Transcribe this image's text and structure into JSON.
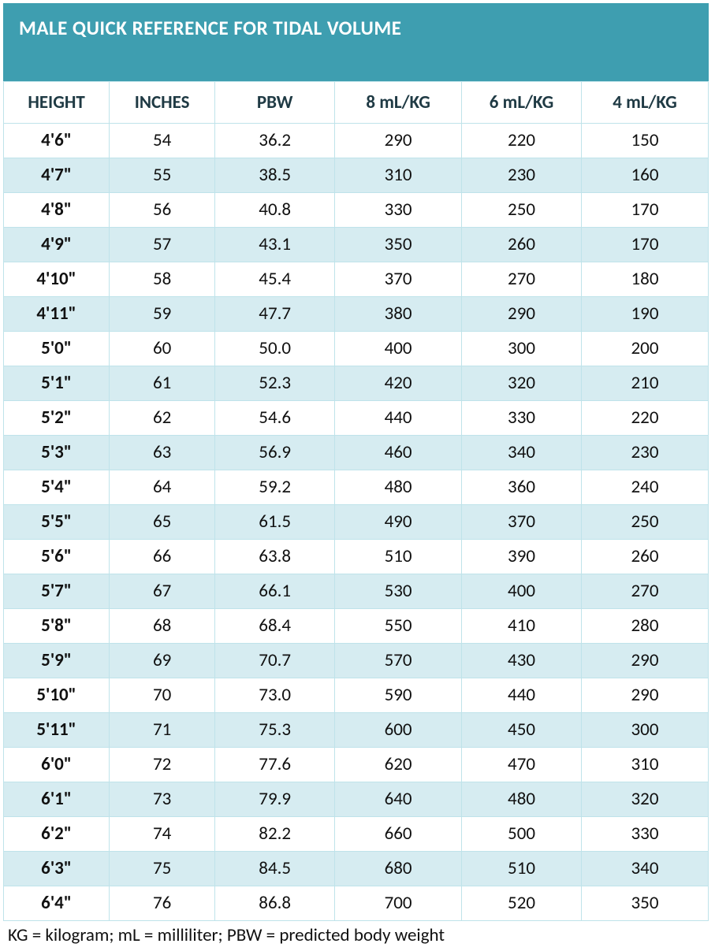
{
  "title": "MALE QUICK REFERENCE FOR TIDAL VOLUME",
  "footnote": "KG = kilogram; mL = milliliter; PBW = predicted body weight",
  "colors": {
    "title_bg": "#3e9eb0",
    "title_fg": "#ffffff",
    "header_fg": "#1f3a44",
    "cell_fg": "#111111",
    "row_alt": "#d6ecf1",
    "border": "#bfe3ea"
  },
  "table": {
    "type": "table",
    "columns": [
      "HEIGHT",
      "INCHES",
      "PBW",
      "8 mL/KG",
      "6 mL/KG",
      "4 mL/KG"
    ],
    "col_widths_pct": [
      15,
      15,
      17,
      18,
      17,
      18
    ],
    "rows": [
      [
        "4'6\"",
        "54",
        "36.2",
        "290",
        "220",
        "150"
      ],
      [
        "4'7\"",
        "55",
        "38.5",
        "310",
        "230",
        "160"
      ],
      [
        "4'8\"",
        "56",
        "40.8",
        "330",
        "250",
        "170"
      ],
      [
        "4'9\"",
        "57",
        "43.1",
        "350",
        "260",
        "170"
      ],
      [
        "4'10\"",
        "58",
        "45.4",
        "370",
        "270",
        "180"
      ],
      [
        "4'11\"",
        "59",
        "47.7",
        "380",
        "290",
        "190"
      ],
      [
        "5'0\"",
        "60",
        "50.0",
        "400",
        "300",
        "200"
      ],
      [
        "5'1\"",
        "61",
        "52.3",
        "420",
        "320",
        "210"
      ],
      [
        "5'2\"",
        "62",
        "54.6",
        "440",
        "330",
        "220"
      ],
      [
        "5'3\"",
        "63",
        "56.9",
        "460",
        "340",
        "230"
      ],
      [
        "5'4\"",
        "64",
        "59.2",
        "480",
        "360",
        "240"
      ],
      [
        "5'5\"",
        "65",
        "61.5",
        "490",
        "370",
        "250"
      ],
      [
        "5'6\"",
        "66",
        "63.8",
        "510",
        "390",
        "260"
      ],
      [
        "5'7\"",
        "67",
        "66.1",
        "530",
        "400",
        "270"
      ],
      [
        "5'8\"",
        "68",
        "68.4",
        "550",
        "410",
        "280"
      ],
      [
        "5'9\"",
        "69",
        "70.7",
        "570",
        "430",
        "290"
      ],
      [
        "5'10\"",
        "70",
        "73.0",
        "590",
        "440",
        "290"
      ],
      [
        "5'11\"",
        "71",
        "75.3",
        "600",
        "450",
        "300"
      ],
      [
        "6'0\"",
        "72",
        "77.6",
        "620",
        "470",
        "310"
      ],
      [
        "6'1\"",
        "73",
        "79.9",
        "640",
        "480",
        "320"
      ],
      [
        "6'2\"",
        "74",
        "82.2",
        "660",
        "500",
        "330"
      ],
      [
        "6'3\"",
        "75",
        "84.5",
        "680",
        "510",
        "340"
      ],
      [
        "6'4\"",
        "76",
        "86.8",
        "700",
        "520",
        "350"
      ]
    ]
  }
}
